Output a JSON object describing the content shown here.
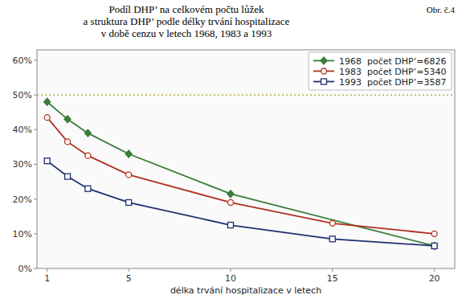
{
  "chart_data": {
    "type": "line",
    "title": "Podíl DHP’ na celkovém počtu lůžek\na struktura DHP’ podle délky trvání hospitalizace\nv době cenzu v letech 1968, 1983 a 1993",
    "annotations": [
      "Obr. č.4"
    ],
    "x_label": "délka trvání hospitalizace v letech",
    "series": [
      {
        "name": "1968  počet DHP’=6826",
        "color": "#3a7d3a",
        "marker": "diamond",
        "x": [
          1,
          2,
          3,
          5,
          10,
          20
        ],
        "values": [
          0.48,
          0.43,
          0.39,
          0.33,
          0.215,
          0.065
        ]
      },
      {
        "name": "1983  počet DHP’=5340",
        "color": "#b03020",
        "marker": "circle",
        "x": [
          1,
          2,
          3,
          5,
          10,
          15,
          20
        ],
        "values": [
          0.435,
          0.365,
          0.325,
          0.27,
          0.19,
          0.13,
          0.1
        ]
      },
      {
        "name": "1993  počet DHP’=3587",
        "color": "#203070",
        "marker": "square",
        "x": [
          1,
          2,
          3,
          5,
          10,
          15,
          20
        ],
        "values": [
          0.31,
          0.265,
          0.23,
          0.19,
          0.125,
          0.085,
          0.065
        ]
      }
    ],
    "hlines": [
      {
        "value": 0.5,
        "color": "#b8b040",
        "line_style": "dotted"
      }
    ],
    "xlim": [
      0.5,
      21
    ],
    "ylim": [
      0,
      0.63
    ],
    "xticks": [
      1,
      5,
      10,
      15,
      20
    ],
    "yticks": [
      {
        "value": 0,
        "label": "0%"
      },
      {
        "value": 0.1,
        "label": "10%"
      },
      {
        "value": 0.2,
        "label": "20%"
      },
      {
        "value": 0.3,
        "label": "30%"
      },
      {
        "value": 0.4,
        "label": "40%"
      },
      {
        "value": 0.5,
        "label": "50%"
      },
      {
        "value": 0.6,
        "label": "60%"
      }
    ],
    "grid": false,
    "legend": "upper right"
  }
}
